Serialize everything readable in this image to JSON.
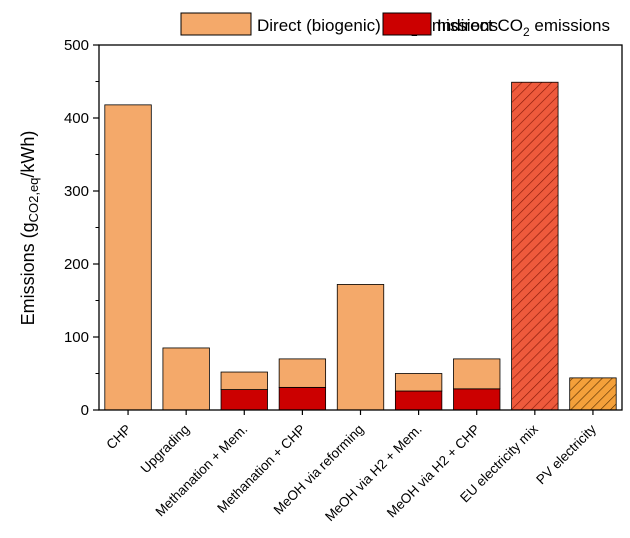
{
  "chart_data": {
    "type": "bar",
    "stacked": true,
    "categories": [
      "CHP",
      "Upgrading",
      "Methanation + Mem.",
      "Methanation + CHP",
      "MeOH via reforming",
      "MeOH via H2 + Mem.",
      "MeOH via H2 + CHP",
      "EU electricity mix",
      "PV electricity"
    ],
    "series": [
      {
        "name": "Indirect CO2 emissions",
        "legend_parts": [
          "Indirect CO",
          "2",
          " emissions"
        ],
        "color": "#cc0000",
        "values": [
          0,
          0,
          28,
          31,
          0,
          26,
          29,
          0,
          0
        ]
      },
      {
        "name": "Direct (biogenic) CO2 emissions",
        "legend_parts": [
          "Direct (biogenic) CO",
          "2",
          " emissions"
        ],
        "color": "#f4a96a",
        "values": [
          418,
          85,
          24,
          39,
          172,
          24,
          41,
          0,
          0
        ]
      }
    ],
    "reference_bars": [
      {
        "category": "EU electricity mix",
        "value": 449,
        "color": "#ee5a3c",
        "hatch": true
      },
      {
        "category": "PV electricity",
        "value": 44,
        "color": "#f4a03a",
        "hatch": true
      }
    ],
    "ylabel_parts": [
      "Emissions (g",
      "CO2,eq",
      "/kWh)"
    ],
    "ylim": [
      0,
      500
    ],
    "yticks": [
      0,
      100,
      200,
      300,
      400,
      500
    ],
    "grid": false,
    "legend_position": "top"
  }
}
